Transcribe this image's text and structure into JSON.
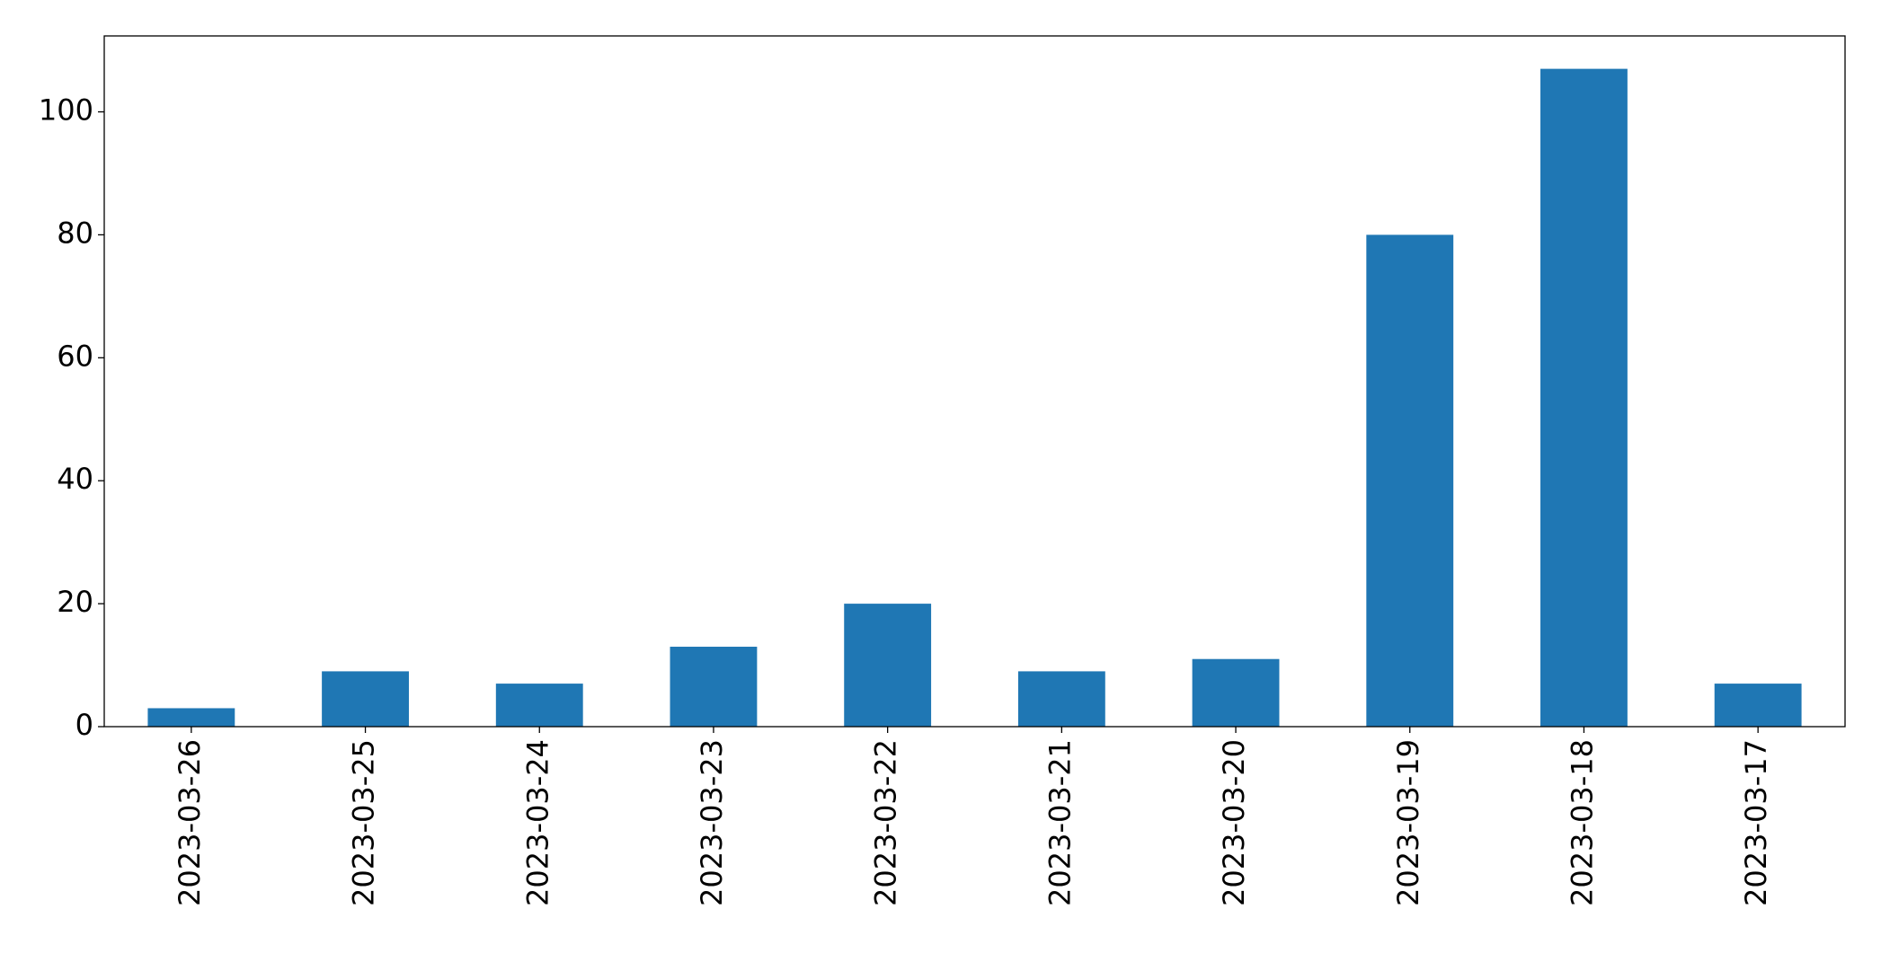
{
  "chart_data": {
    "type": "bar",
    "categories": [
      "2023-03-26",
      "2023-03-25",
      "2023-03-24",
      "2023-03-23",
      "2023-03-22",
      "2023-03-21",
      "2023-03-20",
      "2023-03-19",
      "2023-03-18",
      "2023-03-17"
    ],
    "values": [
      3,
      9,
      7,
      13,
      20,
      9,
      11,
      80,
      107,
      7
    ],
    "color": "#1f77b4",
    "ylim": [
      0,
      112.35
    ],
    "yticks": [
      0,
      20,
      40,
      60,
      80,
      100
    ],
    "grid": false
  }
}
